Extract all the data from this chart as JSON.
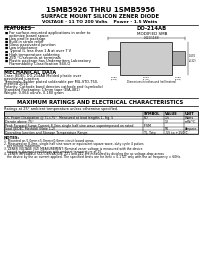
{
  "title_line1": "1SMB5926 THRU 1SMB5956",
  "title_line2": "SURFACE MOUNT SILICON ZENER DIODE",
  "title_line3": "VOLTAGE - 11 TO 200 Volts    Power - 1.5 Watts",
  "features_title": "FEATURES",
  "features": [
    "For surface-mounted applications in order to",
    "optimize board space",
    "Low profile package",
    "Built-in strain relief",
    "Glass passivated junction",
    "Low inductance",
    "Typical IL less than 1 A at over 7 V",
    "High temperature soldering",
    "250 °C/seconds at terminals",
    "Plastic package has Underwriters Laboratory",
    "Flammability Classification 94V-O"
  ],
  "mech_title": "MECHANICAL DATA",
  "mech_data": [
    "Case: JEDEC DO-214AB Molded plastic over",
    "passivated junction",
    "Terminals: Solder plated solderable per MIL-STD-750,",
    "method 2026",
    "Polarity: Cathode band denotes cathode end (symbolic)",
    "Standard Packaging: 13mm tape (EIA-481)",
    "Weight: 0.064 ounce, 0.180 gram"
  ],
  "package_title": "DO-214AB",
  "package_subtitle": "MODIFIED SMB",
  "table_title": "MAXIMUM RATINGS AND ELECTRICAL CHARACTERISTICS",
  "table_note": "Ratings at 25° ambient temperature unless otherwise specified.",
  "table_col_headers": [
    "SYMBOL",
    "VALUE",
    "UNIT"
  ],
  "table_rows": [
    [
      "DC Power Dissipation @ TL=75°  Measured at lead lengths 1, Fig. 5",
      "PD",
      "1.5",
      "Watts"
    ],
    [
      "Derate above 75°",
      "",
      "12",
      "mW/°C"
    ],
    [
      "Peak Forward Surge Current 8.3ms single half sine wave superimposed on rated",
      "IFSM",
      "",
      ""
    ],
    [
      "load (JEDEC Method) (Note 1,2)",
      "",
      "50",
      "Ampere"
    ],
    [
      "Operating Junction and Storage Temperature Range",
      "TJ, Tstg",
      "-55 to +150",
      "°C"
    ]
  ],
  "notes_title": "NOTES:",
  "notes": [
    "1. Mounted on 5.0mm×5.0mm×0.6mm circuit board areas.",
    "2. Measured on 8.3ms, single half sine wave or equivalent square wave, duty cycle 4 pulses",
    "   per minute maximum.",
    "3. ZENER VOLTAGE (VZ) MEASUREMENT: Nominal zener voltage is measured with the device",
    "   biased in thermal equilibrium with ambient temperature at 25.",
    "4. ZENER IMPEDANCE (ZZ) DERIVATION: ZZ1 and ZZ2 are measured by dividing the ac voltage-drop across",
    "   the device by the ac current applied. The specified limits are for Itest = 0.1 IZT only with the ac frequency = 60Hz."
  ],
  "bg_color": "#ffffff",
  "text_color": "#000000"
}
